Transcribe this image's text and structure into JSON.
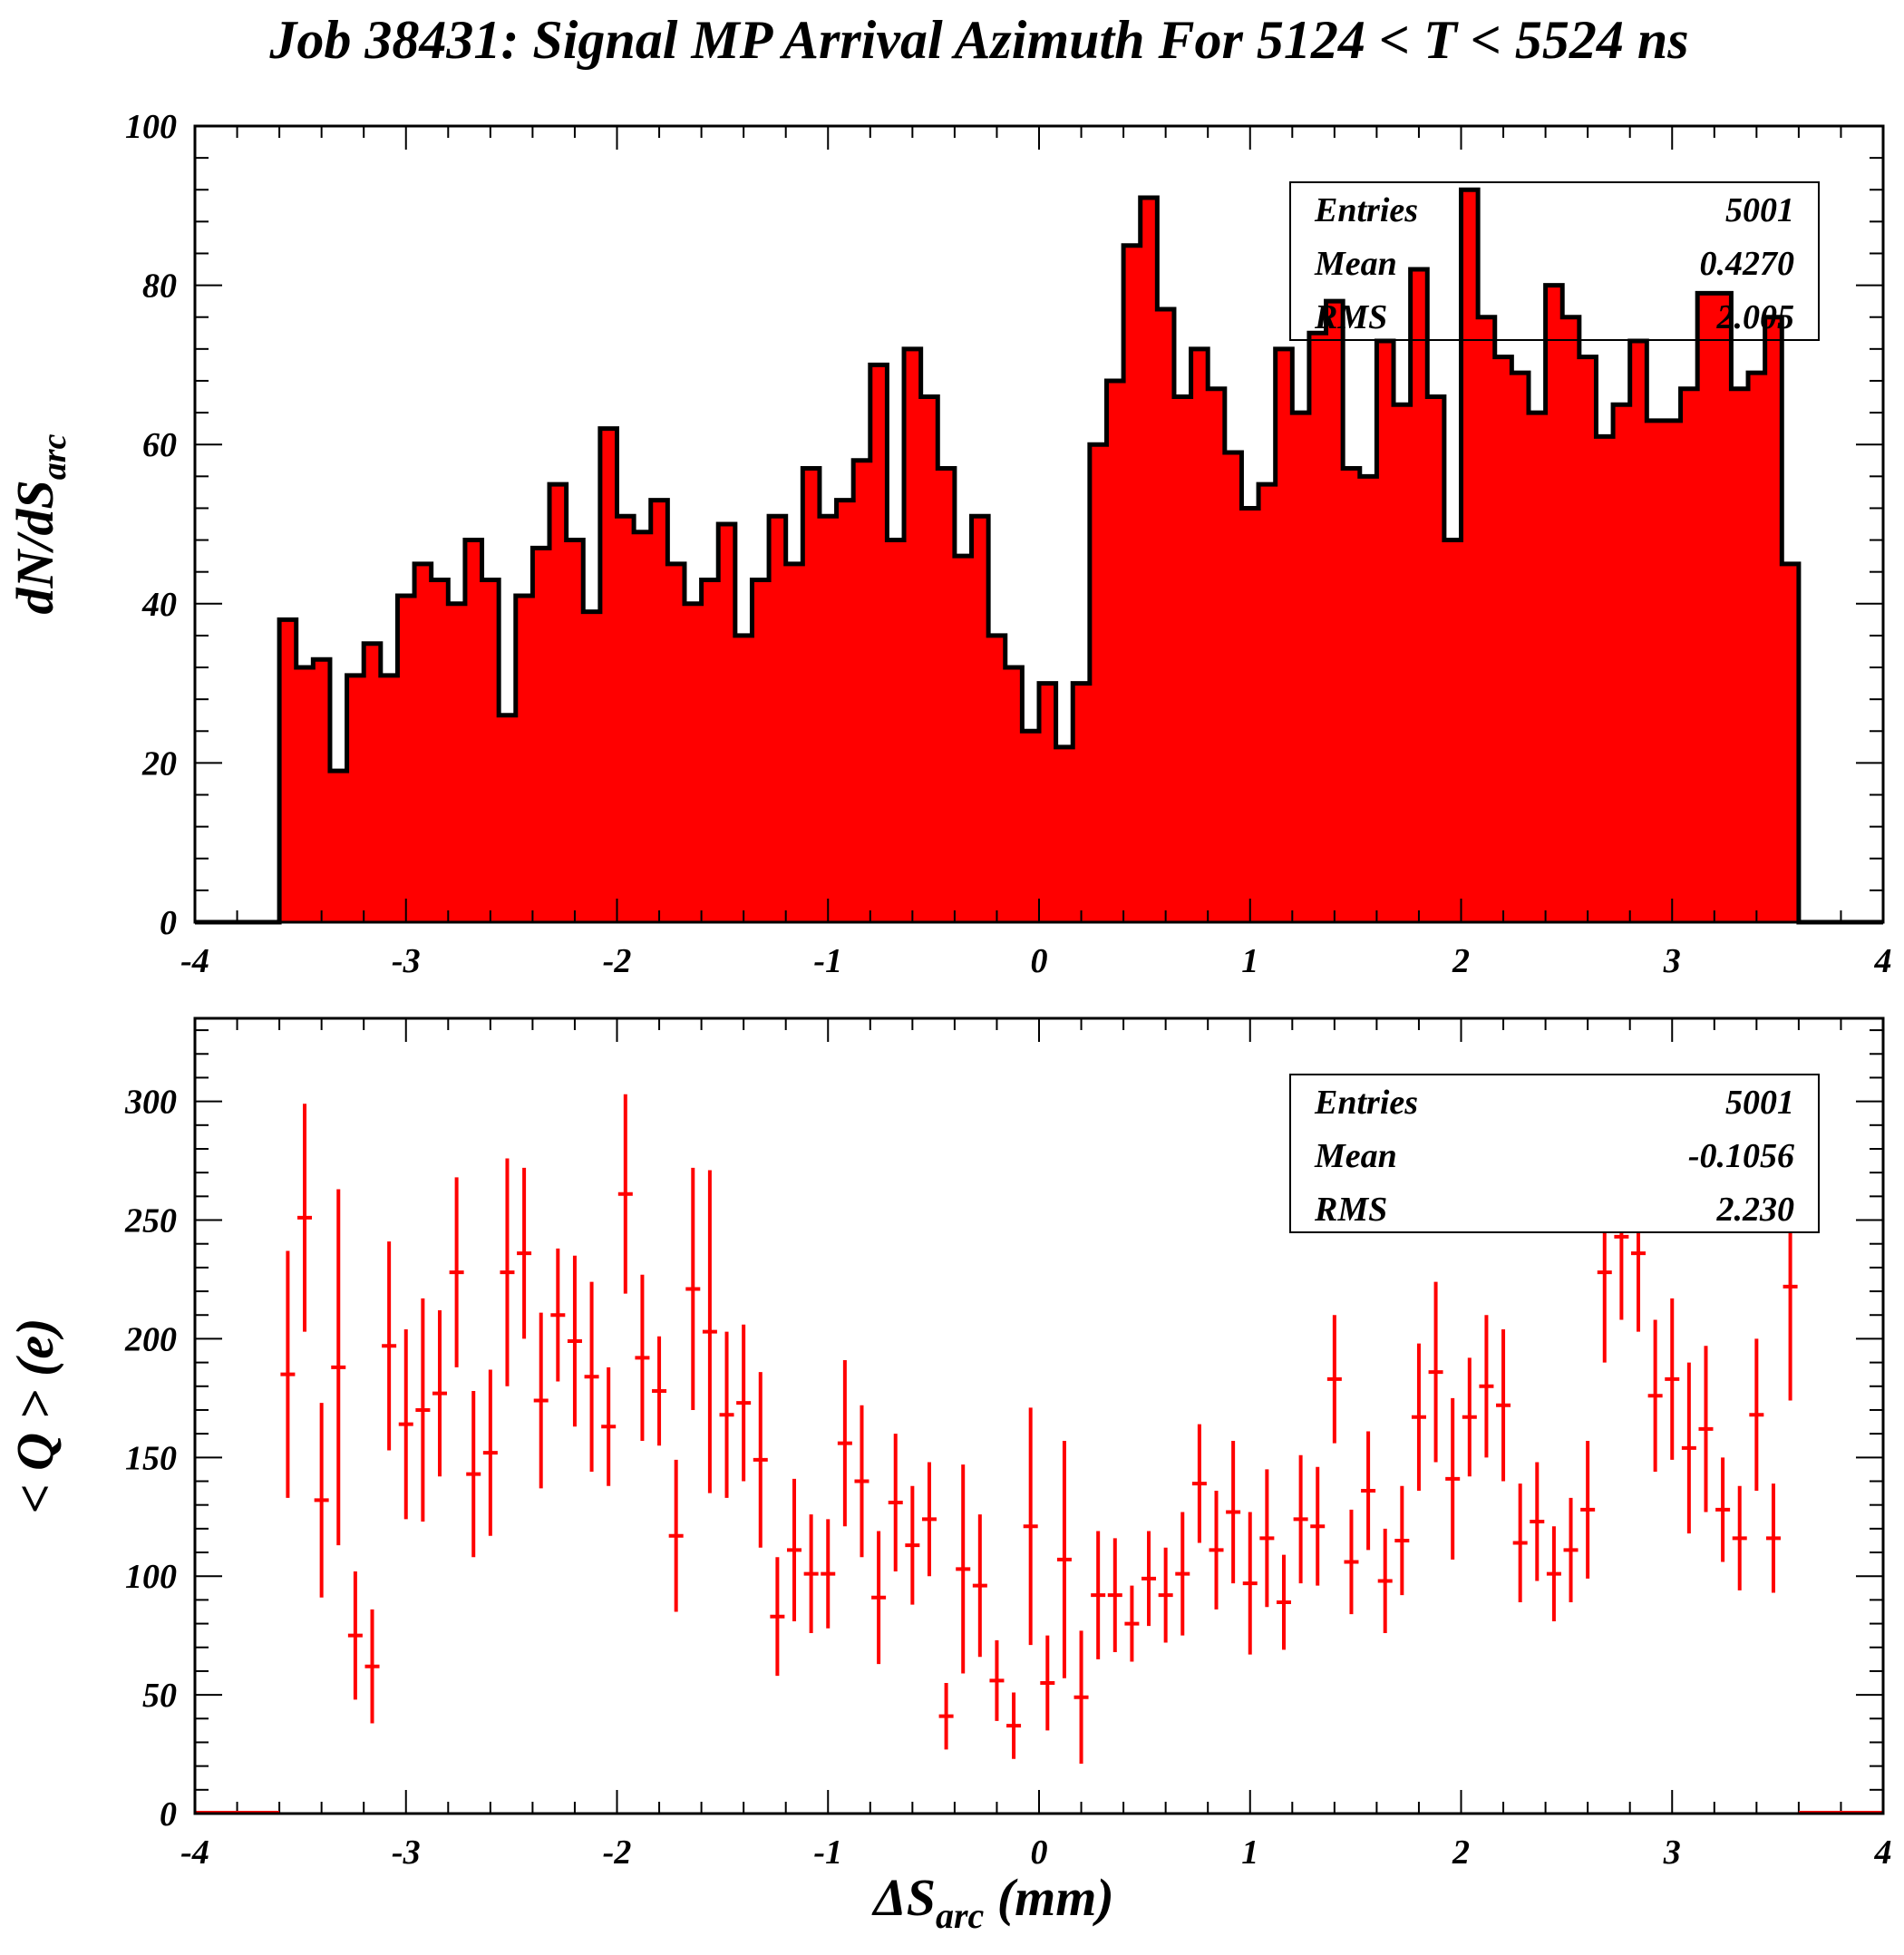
{
  "title": "Job 38431: Signal MP Arrival Azimuth For 5124 < T < 5524 ns",
  "colors": {
    "fill": "#ff0000",
    "line": "#000000",
    "marker": "#ff0000"
  },
  "chart_data": [
    {
      "type": "histogram",
      "ylabel_main": "dN/dS",
      "ylabel_sub": "arc",
      "xlim": [
        -4,
        4
      ],
      "ylim": [
        0,
        100
      ],
      "x_ticks": [
        "-4",
        "-3",
        "-2",
        "-1",
        "0",
        "1",
        "2",
        "3",
        "4"
      ],
      "y_ticks": [
        "0",
        "20",
        "40",
        "60",
        "80",
        "100"
      ],
      "bin_start": -3.6,
      "bin_width": 0.08,
      "values": [
        38,
        32,
        33,
        19,
        31,
        35,
        31,
        41,
        45,
        43,
        40,
        48,
        43,
        26,
        41,
        47,
        55,
        48,
        39,
        62,
        51,
        49,
        53,
        45,
        40,
        43,
        50,
        36,
        43,
        51,
        45,
        57,
        51,
        53,
        58,
        70,
        48,
        72,
        66,
        57,
        46,
        51,
        36,
        32,
        24,
        30,
        22,
        30,
        60,
        68,
        85,
        91,
        77,
        66,
        72,
        67,
        59,
        52,
        55,
        72,
        64,
        74,
        78,
        57,
        56,
        73,
        65,
        82,
        66,
        48,
        92,
        76,
        71,
        69,
        64,
        80,
        76,
        71,
        61,
        65,
        73,
        63,
        63,
        67,
        79,
        79,
        67,
        69,
        76,
        45
      ],
      "stats": [
        {
          "label": "Entries",
          "value": "5001"
        },
        {
          "label": "Mean",
          "value": "0.4270"
        },
        {
          "label": "RMS",
          "value": "2.005"
        }
      ]
    },
    {
      "type": "scatter_errorbars",
      "ylabel": "< Q > (e)",
      "xlabel_main": "ΔS",
      "xlabel_sub": "arc",
      "xlabel_unit": " (mm)",
      "xlim": [
        -4,
        4
      ],
      "ylim": [
        0,
        335
      ],
      "x_ticks": [
        "-4",
        "-3",
        "-2",
        "-1",
        "0",
        "1",
        "2",
        "3",
        "4"
      ],
      "y_ticks": [
        "0",
        "50",
        "100",
        "150",
        "200",
        "250",
        "300"
      ],
      "points": [
        {
          "x": -3.56,
          "y": 185,
          "err": 52
        },
        {
          "x": -3.48,
          "y": 251,
          "err": 48
        },
        {
          "x": -3.4,
          "y": 132,
          "err": 41
        },
        {
          "x": -3.32,
          "y": 188,
          "err": 75
        },
        {
          "x": -3.24,
          "y": 75,
          "err": 27
        },
        {
          "x": -3.16,
          "y": 62,
          "err": 24
        },
        {
          "x": -3.08,
          "y": 197,
          "err": 44
        },
        {
          "x": -3.0,
          "y": 164,
          "err": 40
        },
        {
          "x": -2.92,
          "y": 170,
          "err": 47
        },
        {
          "x": -2.84,
          "y": 177,
          "err": 35
        },
        {
          "x": -2.76,
          "y": 228,
          "err": 40
        },
        {
          "x": -2.68,
          "y": 143,
          "err": 35
        },
        {
          "x": -2.6,
          "y": 152,
          "err": 35
        },
        {
          "x": -2.52,
          "y": 228,
          "err": 48
        },
        {
          "x": -2.44,
          "y": 236,
          "err": 36
        },
        {
          "x": -2.36,
          "y": 174,
          "err": 37
        },
        {
          "x": -2.28,
          "y": 210,
          "err": 28
        },
        {
          "x": -2.2,
          "y": 199,
          "err": 36
        },
        {
          "x": -2.12,
          "y": 184,
          "err": 40
        },
        {
          "x": -2.04,
          "y": 163,
          "err": 25
        },
        {
          "x": -1.96,
          "y": 261,
          "err": 42
        },
        {
          "x": -1.88,
          "y": 192,
          "err": 35
        },
        {
          "x": -1.8,
          "y": 178,
          "err": 23
        },
        {
          "x": -1.72,
          "y": 117,
          "err": 32
        },
        {
          "x": -1.64,
          "y": 221,
          "err": 51
        },
        {
          "x": -1.56,
          "y": 203,
          "err": 68
        },
        {
          "x": -1.48,
          "y": 168,
          "err": 35
        },
        {
          "x": -1.4,
          "y": 173,
          "err": 33
        },
        {
          "x": -1.32,
          "y": 149,
          "err": 37
        },
        {
          "x": -1.24,
          "y": 83,
          "err": 25
        },
        {
          "x": -1.16,
          "y": 111,
          "err": 30
        },
        {
          "x": -1.08,
          "y": 101,
          "err": 25
        },
        {
          "x": -1.0,
          "y": 101,
          "err": 23
        },
        {
          "x": -0.92,
          "y": 156,
          "err": 35
        },
        {
          "x": -0.84,
          "y": 140,
          "err": 32
        },
        {
          "x": -0.76,
          "y": 91,
          "err": 28
        },
        {
          "x": -0.68,
          "y": 131,
          "err": 29
        },
        {
          "x": -0.6,
          "y": 113,
          "err": 25
        },
        {
          "x": -0.52,
          "y": 124,
          "err": 24
        },
        {
          "x": -0.44,
          "y": 41,
          "err": 14
        },
        {
          "x": -0.36,
          "y": 103,
          "err": 44
        },
        {
          "x": -0.28,
          "y": 96,
          "err": 30
        },
        {
          "x": -0.2,
          "y": 56,
          "err": 17
        },
        {
          "x": -0.12,
          "y": 37,
          "err": 14
        },
        {
          "x": -0.04,
          "y": 121,
          "err": 50
        },
        {
          "x": 0.04,
          "y": 55,
          "err": 20
        },
        {
          "x": 0.12,
          "y": 107,
          "err": 50
        },
        {
          "x": 0.2,
          "y": 49,
          "err": 28
        },
        {
          "x": 0.28,
          "y": 92,
          "err": 27
        },
        {
          "x": 0.36,
          "y": 92,
          "err": 24
        },
        {
          "x": 0.44,
          "y": 80,
          "err": 16
        },
        {
          "x": 0.52,
          "y": 99,
          "err": 20
        },
        {
          "x": 0.6,
          "y": 92,
          "err": 20
        },
        {
          "x": 0.68,
          "y": 101,
          "err": 26
        },
        {
          "x": 0.76,
          "y": 139,
          "err": 25
        },
        {
          "x": 0.84,
          "y": 111,
          "err": 25
        },
        {
          "x": 0.92,
          "y": 127,
          "err": 30
        },
        {
          "x": 1.0,
          "y": 97,
          "err": 30
        },
        {
          "x": 1.08,
          "y": 116,
          "err": 29
        },
        {
          "x": 1.16,
          "y": 89,
          "err": 20
        },
        {
          "x": 1.24,
          "y": 124,
          "err": 27
        },
        {
          "x": 1.32,
          "y": 121,
          "err": 25
        },
        {
          "x": 1.4,
          "y": 183,
          "err": 27
        },
        {
          "x": 1.48,
          "y": 106,
          "err": 22
        },
        {
          "x": 1.56,
          "y": 136,
          "err": 25
        },
        {
          "x": 1.64,
          "y": 98,
          "err": 22
        },
        {
          "x": 1.72,
          "y": 115,
          "err": 23
        },
        {
          "x": 1.8,
          "y": 167,
          "err": 31
        },
        {
          "x": 1.88,
          "y": 186,
          "err": 38
        },
        {
          "x": 1.96,
          "y": 141,
          "err": 34
        },
        {
          "x": 2.04,
          "y": 167,
          "err": 25
        },
        {
          "x": 2.12,
          "y": 180,
          "err": 30
        },
        {
          "x": 2.2,
          "y": 172,
          "err": 32
        },
        {
          "x": 2.28,
          "y": 114,
          "err": 25
        },
        {
          "x": 2.36,
          "y": 123,
          "err": 25
        },
        {
          "x": 2.44,
          "y": 101,
          "err": 20
        },
        {
          "x": 2.52,
          "y": 111,
          "err": 22
        },
        {
          "x": 2.6,
          "y": 128,
          "err": 29
        },
        {
          "x": 2.68,
          "y": 228,
          "err": 38
        },
        {
          "x": 2.76,
          "y": 243,
          "err": 35
        },
        {
          "x": 2.84,
          "y": 236,
          "err": 33
        },
        {
          "x": 2.92,
          "y": 176,
          "err": 32
        },
        {
          "x": 3.0,
          "y": 183,
          "err": 34
        },
        {
          "x": 3.08,
          "y": 154,
          "err": 36
        },
        {
          "x": 3.16,
          "y": 162,
          "err": 35
        },
        {
          "x": 3.24,
          "y": 128,
          "err": 22
        },
        {
          "x": 3.32,
          "y": 116,
          "err": 22
        },
        {
          "x": 3.4,
          "y": 168,
          "err": 32
        },
        {
          "x": 3.48,
          "y": 116,
          "err": 23
        },
        {
          "x": 3.56,
          "y": 222,
          "err": 48
        }
      ],
      "stats": [
        {
          "label": "Entries",
          "value": "5001"
        },
        {
          "label": "Mean",
          "value": "-0.1056"
        },
        {
          "label": "RMS",
          "value": "2.230"
        }
      ]
    }
  ]
}
